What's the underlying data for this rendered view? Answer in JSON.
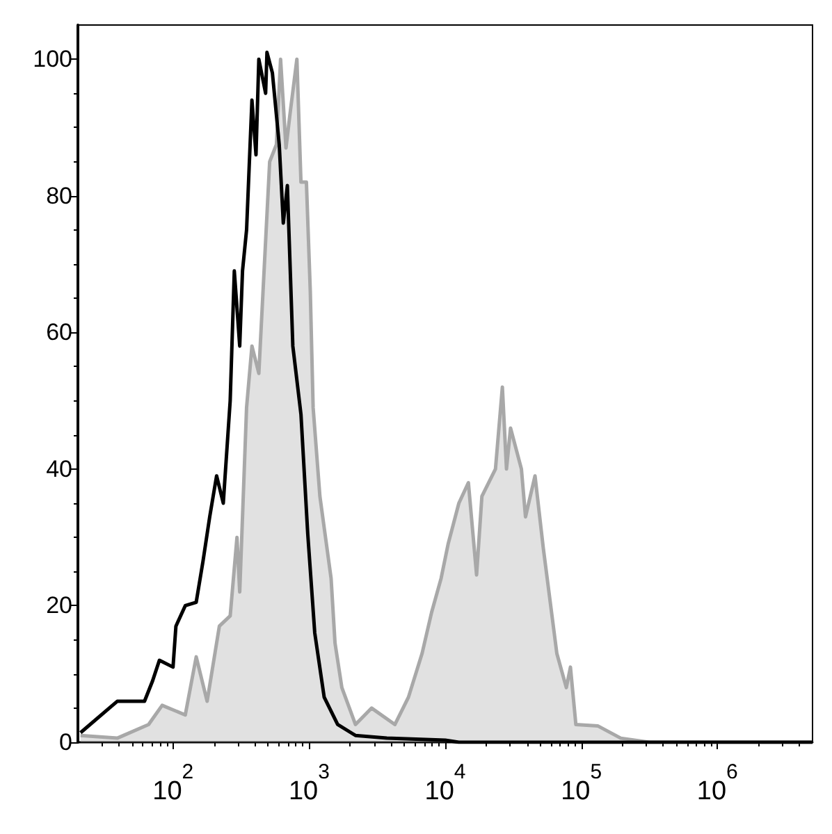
{
  "chart_data": {
    "type": "line",
    "log": "x",
    "xlim": [
      20,
      5000000
    ],
    "ylim": [
      0,
      105
    ],
    "xticks": [
      {
        "value": 100,
        "label": "10$^{2}$"
      },
      {
        "value": 1000,
        "label": "10$^{3}$"
      },
      {
        "value": 10000,
        "label": "10$^{4}$"
      },
      {
        "value": 100000,
        "label": "10$^{5}$"
      },
      {
        "value": 1000000,
        "label": "10$^{6}$"
      }
    ],
    "yticks": [
      0,
      20,
      40,
      60,
      80,
      100
    ],
    "grid": false,
    "marker": "none",
    "line_style": "solid",
    "series": [
      {
        "type": "area",
        "color": "#a8a8a8",
        "x": [
          20.9,
          38.9,
          66.1,
          83.2,
          123,
          148,
          178,
          219,
          263,
          295,
          309,
          347,
          380,
          427,
          513,
          575,
          617,
          676,
          724,
          813,
          871,
          955,
          1020,
          1070,
          1200,
          1450,
          1550,
          1740,
          2190,
          2880,
          4270,
          5370,
          6760,
          7940,
          9330,
          10500,
          12600,
          14800,
          17000,
          18600,
          23400,
          26300,
          28200,
          30200,
          36300,
          38900,
          45700,
          52500,
          66100,
          77600,
          83200,
          91200,
          132000,
          195000,
          316000,
          5000000
        ],
        "values": [
          1,
          0.6,
          2.6,
          5.4,
          4,
          12.5,
          6,
          17,
          18.5,
          30,
          22,
          49,
          58,
          54,
          85,
          87.5,
          100,
          87,
          92,
          100,
          82,
          82,
          66,
          49,
          36,
          24,
          14.5,
          8,
          2.6,
          5,
          2.6,
          6.6,
          13,
          19,
          24,
          29,
          35,
          38,
          24.5,
          36,
          40,
          52,
          40,
          46,
          40,
          33,
          39,
          28.5,
          13,
          8,
          11,
          2.6,
          2.4,
          0.6,
          0,
          0
        ]
      },
      {
        "color": "#000000",
        "x": [
          20.9,
          38.9,
          61.7,
          70.8,
          79.4,
          100,
          105,
          123,
          148,
          166,
          186,
          209,
          234,
          263,
          282,
          309,
          324,
          347,
          380,
          407,
          427,
          479,
          490,
          537,
          603,
          646,
          692,
          759,
          871,
          977,
          1100,
          1290,
          1620,
          2190,
          3720,
          10000,
          12600,
          5000000
        ],
        "values": [
          1.4,
          6,
          6,
          9,
          12,
          11,
          17,
          20,
          20.5,
          26.5,
          33,
          39,
          35,
          50,
          69,
          58,
          69,
          75,
          94,
          86,
          100,
          95,
          101,
          98,
          87.5,
          76,
          81.5,
          58,
          48,
          30.5,
          16,
          6.6,
          2.6,
          1,
          0.6,
          0.3,
          0,
          0
        ]
      }
    ]
  }
}
